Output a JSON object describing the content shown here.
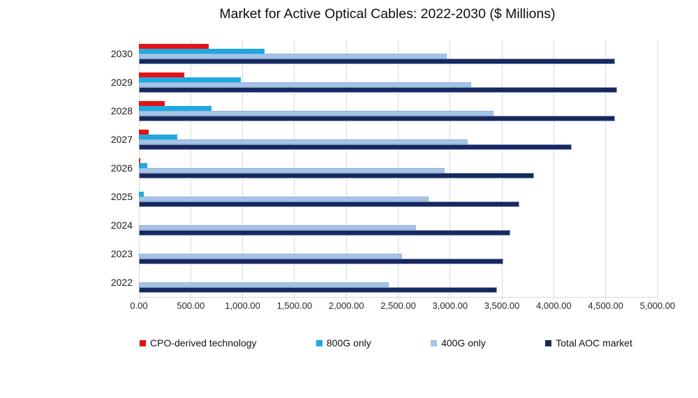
{
  "title": "Market for Active Optical Cables: 2022-2030 ($ Millions)",
  "chart_data": {
    "type": "bar",
    "orientation": "horizontal",
    "title": "Market for Active Optical Cables: 2022-2030 ($ Millions)",
    "xlabel": "",
    "ylabel": "",
    "xlim": [
      0,
      5000
    ],
    "grid": true,
    "gridline_color": "#d9d9d9",
    "legend_position": "bottom",
    "categories": [
      "2030",
      "2029",
      "2028",
      "2027",
      "2026",
      "2025",
      "2024",
      "2023",
      "2022"
    ],
    "x_ticks": [
      0,
      500,
      1000,
      1500,
      2000,
      2500,
      3000,
      3500,
      4000,
      4500,
      5000
    ],
    "x_tick_labels": [
      "0.00",
      "500.00",
      "1,000.00",
      "1,500.00",
      "2,000.00",
      "2,500.00",
      "3,000.00",
      "3,500.00",
      "4,000.00",
      "4,500.00",
      "5,000.00"
    ],
    "series": [
      {
        "name": "CPO-derived technology",
        "color": "#e41313",
        "values": [
          670,
          440,
          250,
          95,
          15,
          0,
          0,
          0,
          0
        ]
      },
      {
        "name": "800G only",
        "color": "#1fa8e1",
        "values": [
          1210,
          980,
          700,
          370,
          80,
          45,
          0,
          0,
          0
        ]
      },
      {
        "name": "400G only",
        "color": "#a3c4e6",
        "values": [
          2970,
          3200,
          3420,
          3170,
          2950,
          2790,
          2670,
          2540,
          2410
        ]
      },
      {
        "name": "Total AOC market",
        "color": "#16295f",
        "values": [
          4590,
          4610,
          4590,
          4170,
          3810,
          3670,
          3580,
          3510,
          3450
        ]
      }
    ]
  }
}
